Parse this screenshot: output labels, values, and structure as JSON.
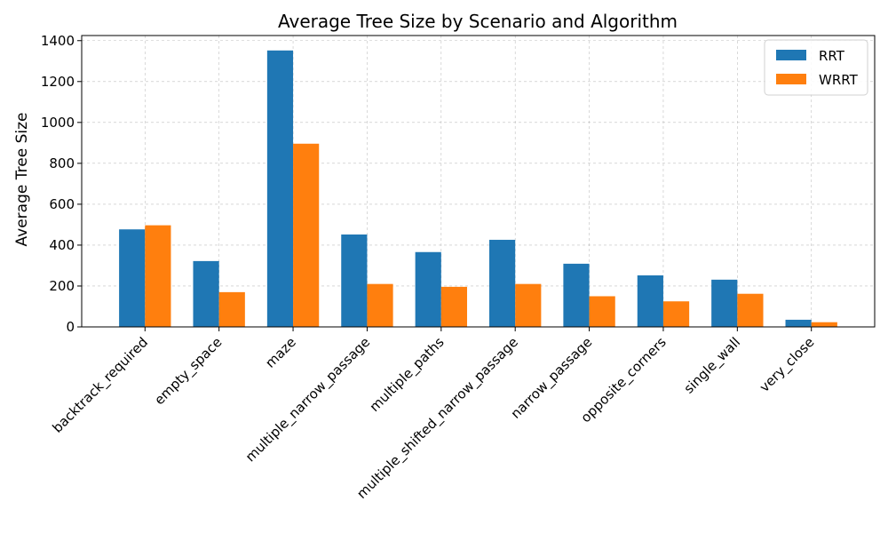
{
  "chart_data": {
    "type": "bar",
    "title": "Average Tree Size by Scenario and Algorithm",
    "xlabel": "",
    "ylabel": "Average Tree Size",
    "ylim": [
      0,
      1425
    ],
    "yticks": [
      0,
      200,
      400,
      600,
      800,
      1000,
      1200,
      1400
    ],
    "grid": true,
    "legend_position": "top-right",
    "categories": [
      "backtrack_required",
      "empty_space",
      "maze",
      "multiple_narrow_passage",
      "multiple_paths",
      "multiple_shifted_narrow_passage",
      "narrow_passage",
      "opposite_corners",
      "single_wall",
      "very_close"
    ],
    "series": [
      {
        "name": "RRT",
        "color": "#1f77b4",
        "values": [
          477,
          322,
          1352,
          452,
          366,
          426,
          309,
          252,
          231,
          35
        ]
      },
      {
        "name": "WRRT",
        "color": "#ff7f0e",
        "values": [
          497,
          170,
          896,
          210,
          196,
          210,
          150,
          125,
          162,
          23
        ]
      }
    ]
  }
}
